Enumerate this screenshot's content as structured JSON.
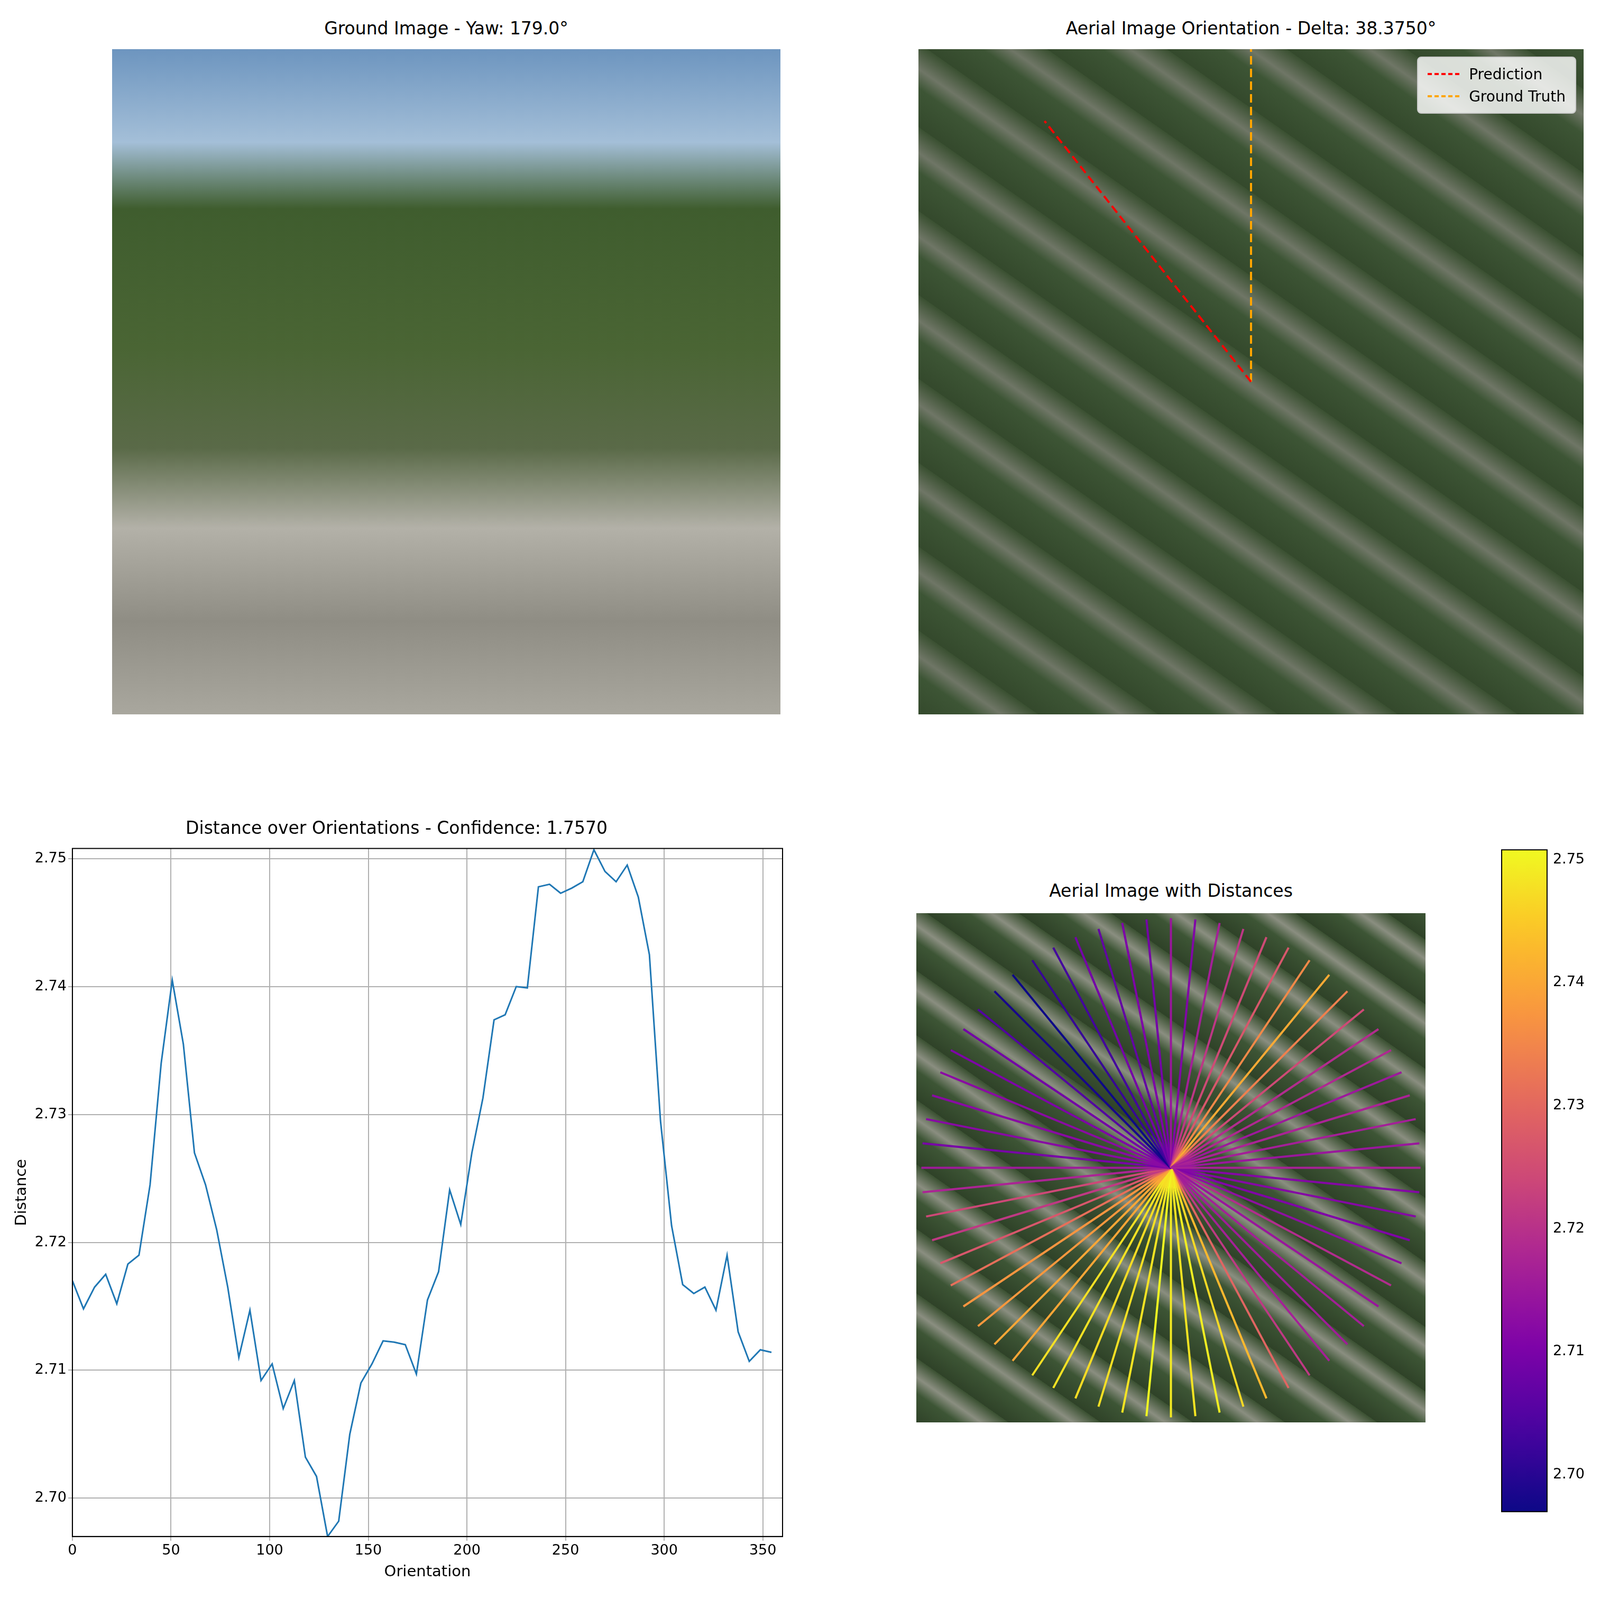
{
  "chart_data": [
    {
      "type": "image",
      "title": "Ground Image - Yaw: 179.0°"
    },
    {
      "type": "orientation",
      "title": "Aerial Image Orientation - Delta: 38.3750°",
      "legend": "upper right",
      "series": [
        {
          "name": "Prediction",
          "color": "#ff0000",
          "line_style": "dashed",
          "angle": 128.375
        },
        {
          "name": "Ground Truth",
          "color": "#ffa500",
          "line_style": "dashed",
          "angle": 90
        }
      ]
    },
    {
      "type": "line",
      "title": "Distance over Orientations - Confidence: 1.7570",
      "x_label": "Orientation",
      "y_label": "Distance",
      "color": "#1f77b4",
      "grid": true,
      "x": [
        0,
        5.625,
        11.25,
        16.875,
        22.5,
        28.125,
        33.75,
        39.375,
        45,
        50.625,
        56.25,
        61.875,
        67.5,
        73.125,
        78.75,
        84.375,
        90,
        95.625,
        101.25,
        106.875,
        112.5,
        118.125,
        123.75,
        129.375,
        135,
        140.625,
        146.25,
        151.875,
        157.5,
        163.125,
        168.75,
        174.375,
        180,
        185.625,
        191.25,
        196.875,
        202.5,
        208.125,
        213.75,
        219.375,
        225,
        230.625,
        236.25,
        241.875,
        247.5,
        253.125,
        258.75,
        264.375,
        270,
        275.625,
        281.25,
        286.875,
        292.5,
        298.125,
        303.75,
        309.375,
        315,
        320.625,
        326.25,
        331.875,
        337.5,
        343.125,
        348.75,
        354.375
      ],
      "values": [
        2.717,
        2.7148,
        2.7165,
        2.7175,
        2.7152,
        2.7183,
        2.719,
        2.7245,
        2.734,
        2.7405,
        2.7355,
        2.727,
        2.7245,
        2.721,
        2.7165,
        2.711,
        2.7147,
        2.7092,
        2.7105,
        2.707,
        2.7092,
        2.7032,
        2.7017,
        2.697,
        2.6982,
        2.705,
        2.709,
        2.7105,
        2.7123,
        2.7122,
        2.712,
        2.7097,
        2.7155,
        2.7177,
        2.7241,
        2.7214,
        2.727,
        2.7313,
        2.7374,
        2.7378,
        2.74,
        2.7399,
        2.7478,
        2.748,
        2.7473,
        2.7477,
        2.7482,
        2.7507,
        2.749,
        2.7482,
        2.7495,
        2.747,
        2.7425,
        2.7295,
        2.7213,
        2.7167,
        2.716,
        2.7165,
        2.7147,
        2.719,
        2.713,
        2.7107,
        2.7116,
        2.7114
      ],
      "xlim": [
        0,
        360
      ],
      "xticks": [
        0,
        50,
        100,
        150,
        200,
        250,
        300,
        350
      ],
      "ylim": [
        2.697,
        2.7508
      ],
      "yticks": [
        {
          "value": 2.7,
          "label": "2.70"
        },
        2.71,
        2.72,
        2.73,
        2.74,
        2.75
      ]
    },
    {
      "type": "radial",
      "title": "Aerial Image with Distances",
      "color": "plasma",
      "colorbar_lim": [
        2.697,
        2.7508
      ],
      "colorbar_ticks": [
        {
          "value": 2.7,
          "label": "2.70"
        },
        2.71,
        2.72,
        2.73,
        2.74,
        2.75
      ]
    }
  ]
}
